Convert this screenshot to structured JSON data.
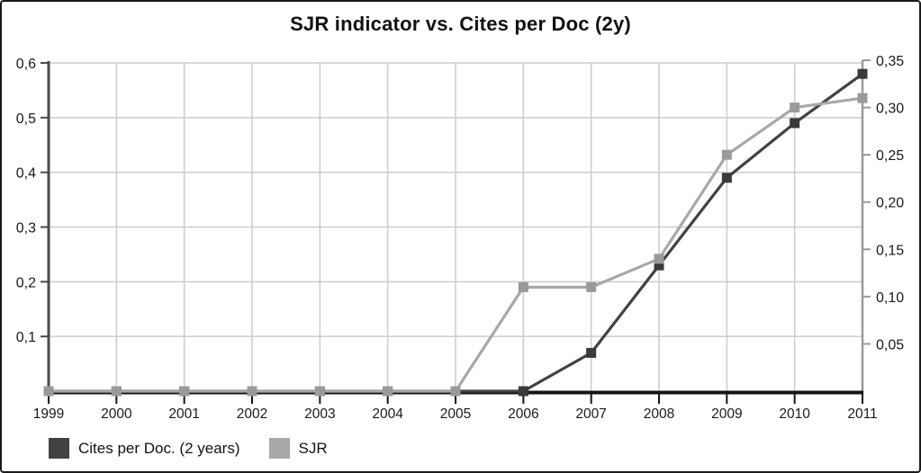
{
  "title": "SJR indicator vs. Cites per Doc (2y)",
  "colors": {
    "background": "#ffffff",
    "frame_border": "#1a1a1a",
    "grid": "#cccccc",
    "left_axis": "#4a4a4a",
    "right_axis": "#9a9a9a",
    "bottom_axis": "#141414",
    "tick_text": "#1a1a1a",
    "cites_line": "#424242",
    "cites_marker": "#3a3a3a",
    "sjr_line": "#a8a8a8",
    "sjr_marker": "#9a9a9a"
  },
  "chart_data": {
    "type": "line",
    "title": "SJR indicator vs. Cites per Doc (2y)",
    "categories": [
      "1999",
      "2000",
      "2001",
      "2002",
      "2003",
      "2004",
      "2005",
      "2006",
      "2007",
      "2008",
      "2009",
      "2010",
      "2011"
    ],
    "series": [
      {
        "name": "Cites per Doc. (2 years)",
        "axis": "left",
        "color": "#424242",
        "marker_color": "#3a3a3a",
        "values": [
          0,
          0,
          0,
          0,
          0,
          0,
          0,
          0,
          0.07,
          0.23,
          0.39,
          0.49,
          0.58
        ]
      },
      {
        "name": "SJR",
        "axis": "right",
        "color": "#a8a8a8",
        "marker_color": "#9a9a9a",
        "values": [
          0,
          0,
          0,
          0,
          0,
          0,
          0,
          0.11,
          0.11,
          0.14,
          0.25,
          0.3,
          0.31
        ]
      }
    ],
    "left_axis": {
      "range": [
        0,
        0.6
      ],
      "tick_values": [
        0.1,
        0.2,
        0.3,
        0.4,
        0.5,
        0.6
      ],
      "tick_labels": [
        "0,1",
        "0,2",
        "0,3",
        "0,4",
        "0,5",
        "0,6"
      ]
    },
    "right_axis": {
      "range": [
        0,
        0.35
      ],
      "tick_values": [
        0.05,
        0.1,
        0.15,
        0.2,
        0.25,
        0.3,
        0.35
      ],
      "tick_labels": [
        "0,05",
        "0,10",
        "0,15",
        "0,20",
        "0,25",
        "0,30",
        "0,35"
      ]
    },
    "grid": true,
    "legend_position": "bottom-left",
    "decimal_separator": ","
  },
  "legend": {
    "items": [
      {
        "label": "Cites per Doc. (2 years)"
      },
      {
        "label": "SJR"
      }
    ]
  }
}
